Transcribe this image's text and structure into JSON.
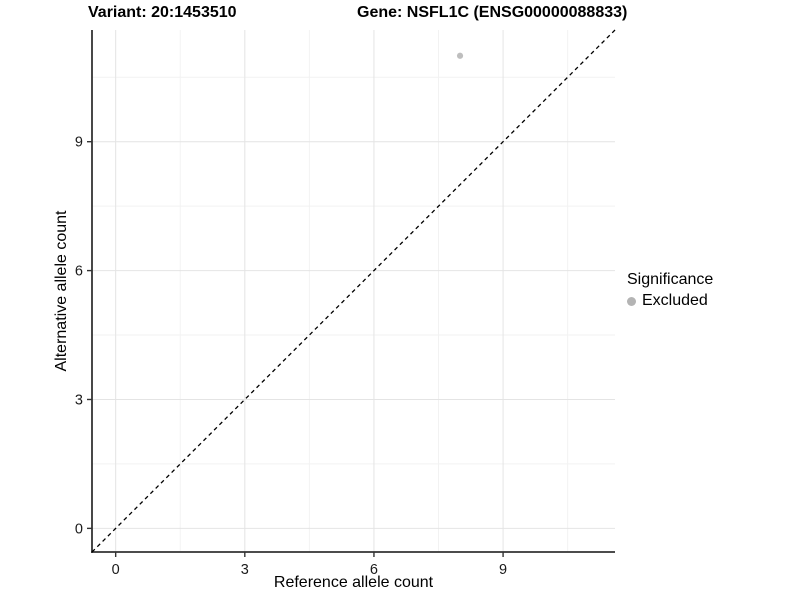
{
  "header": {
    "variant_title": "Variant: 20:1453510",
    "gene_title": "Gene: NSFL1C (ENSG00000088833)"
  },
  "legend": {
    "title": "Significance",
    "items": [
      {
        "label": "Excluded",
        "color": "#b4b4b4"
      }
    ]
  },
  "colors": {
    "grid_major": "#e4e4e4",
    "grid_minor": "#f2f2f2",
    "axis_line": "#333333",
    "tick_label": "#1a1a1a",
    "identity_line": "#000000",
    "point": "#bebebe"
  },
  "chart_data": {
    "type": "scatter",
    "title": "Variant: 20:1453510   Gene: NSFL1C (ENSG00000088833)",
    "xlabel": "Reference allele count",
    "ylabel": "Alternative allele count",
    "xlim": [
      -0.55,
      11.6
    ],
    "ylim": [
      -0.55,
      11.6
    ],
    "x_ticks": [
      0,
      3,
      6,
      9
    ],
    "y_ticks": [
      0,
      3,
      6,
      9
    ],
    "minor_ticks": [
      1.5,
      4.5,
      7.5,
      10.5
    ],
    "grid": true,
    "points": [
      {
        "x": 8,
        "y": 11,
        "significance": "Excluded",
        "color": "#bebebe",
        "radius": 3.1
      }
    ],
    "reference_line": {
      "kind": "identity y=x",
      "style": "dashed",
      "color": "#000000"
    },
    "legend": {
      "title": "Significance",
      "position": "right",
      "entries": [
        "Excluded"
      ]
    }
  }
}
